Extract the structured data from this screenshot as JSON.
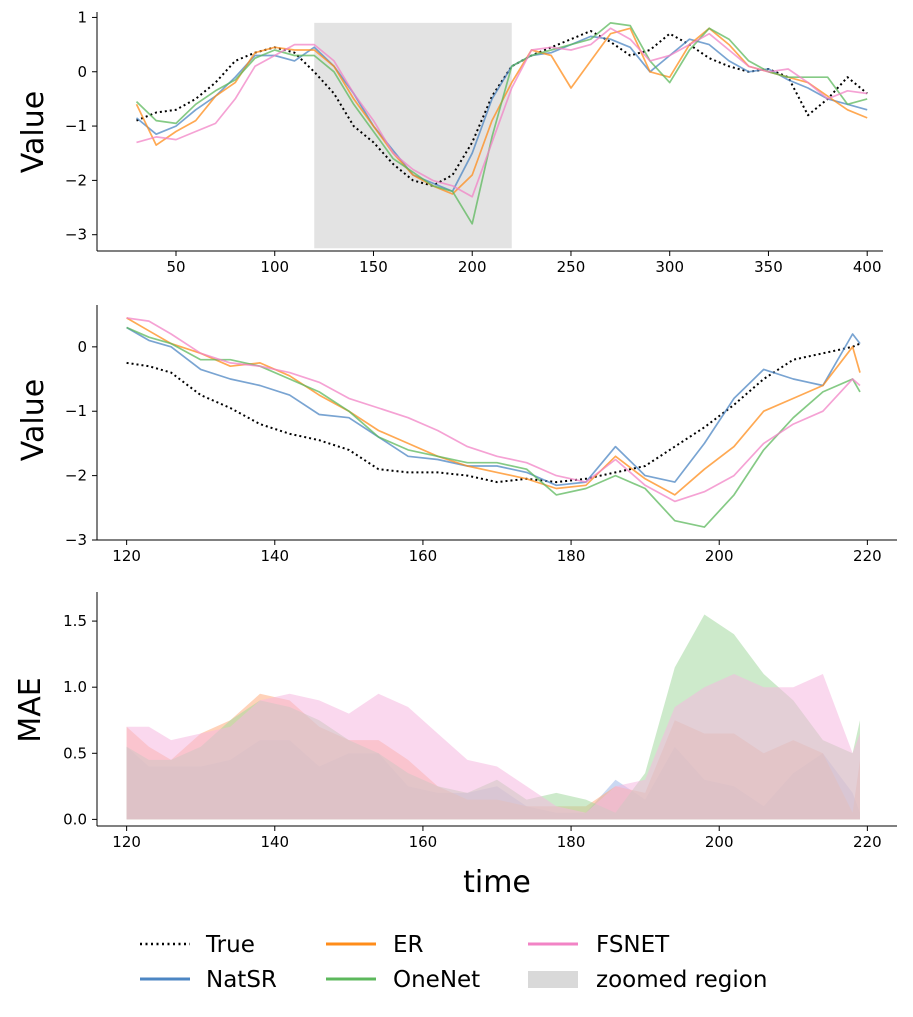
{
  "chart_data": [
    {
      "type": "line",
      "panel": "overview",
      "title": "",
      "xlabel": "",
      "ylabel": "Value",
      "xlim": [
        10,
        408
      ],
      "ylim": [
        -3.3,
        1.1
      ],
      "xticks": [
        50,
        100,
        150,
        200,
        250,
        300,
        350,
        400
      ],
      "yticks": [
        -3,
        -2,
        -1,
        0,
        1
      ],
      "zoomed_region": {
        "x0": 120,
        "x1": 220,
        "y0": -3.25,
        "y1": 0.9
      },
      "series": [
        {
          "name": "True",
          "x": [
            30,
            40,
            50,
            60,
            70,
            80,
            90,
            100,
            110,
            120,
            130,
            140,
            150,
            160,
            170,
            180,
            190,
            200,
            210,
            220,
            230,
            240,
            250,
            260,
            270,
            280,
            290,
            300,
            310,
            320,
            330,
            340,
            350,
            360,
            370,
            380,
            390,
            400
          ],
          "values": [
            -0.9,
            -0.75,
            -0.7,
            -0.5,
            -0.2,
            0.2,
            0.35,
            0.45,
            0.35,
            0.0,
            -0.4,
            -1.0,
            -1.3,
            -1.7,
            -2.0,
            -2.1,
            -1.9,
            -1.3,
            -0.45,
            0.1,
            0.3,
            0.45,
            0.6,
            0.75,
            0.55,
            0.3,
            0.4,
            0.7,
            0.5,
            0.25,
            0.1,
            0.0,
            0.05,
            -0.1,
            -0.8,
            -0.5,
            -0.1,
            -0.4
          ]
        },
        {
          "name": "NatSR",
          "x": [
            30,
            40,
            50,
            60,
            70,
            80,
            90,
            100,
            110,
            120,
            130,
            140,
            150,
            160,
            170,
            180,
            190,
            200,
            210,
            220,
            230,
            240,
            250,
            260,
            270,
            280,
            290,
            300,
            310,
            320,
            330,
            340,
            350,
            360,
            370,
            380,
            390,
            400
          ],
          "values": [
            -0.85,
            -1.15,
            -1.0,
            -0.7,
            -0.45,
            -0.1,
            0.3,
            0.3,
            0.2,
            0.45,
            0.1,
            -0.4,
            -1.0,
            -1.45,
            -1.9,
            -2.05,
            -2.2,
            -1.5,
            -0.5,
            0.1,
            0.3,
            0.35,
            0.5,
            0.65,
            0.6,
            0.45,
            0.0,
            0.3,
            0.6,
            0.5,
            0.2,
            0.0,
            0.05,
            -0.15,
            -0.3,
            -0.5,
            -0.6,
            -0.7
          ]
        },
        {
          "name": "ER",
          "x": [
            30,
            40,
            50,
            60,
            70,
            80,
            90,
            100,
            110,
            120,
            130,
            140,
            150,
            160,
            170,
            180,
            190,
            200,
            210,
            220,
            230,
            240,
            250,
            260,
            270,
            280,
            290,
            300,
            310,
            320,
            330,
            340,
            350,
            360,
            370,
            380,
            390,
            400
          ],
          "values": [
            -0.6,
            -1.35,
            -1.1,
            -0.9,
            -0.45,
            -0.2,
            0.35,
            0.45,
            0.4,
            0.4,
            0.1,
            -0.5,
            -1.0,
            -1.5,
            -1.9,
            -2.1,
            -2.25,
            -1.9,
            -0.9,
            -0.2,
            0.4,
            0.3,
            -0.3,
            0.2,
            0.7,
            0.8,
            0.0,
            -0.1,
            0.5,
            0.8,
            0.5,
            0.1,
            0.0,
            -0.1,
            -0.2,
            -0.45,
            -0.7,
            -0.85
          ]
        },
        {
          "name": "OneNet",
          "x": [
            30,
            40,
            50,
            60,
            70,
            80,
            90,
            100,
            110,
            120,
            130,
            140,
            150,
            160,
            170,
            180,
            190,
            200,
            210,
            220,
            230,
            240,
            250,
            260,
            270,
            280,
            290,
            300,
            310,
            320,
            330,
            340,
            350,
            360,
            370,
            380,
            390,
            400
          ],
          "values": [
            -0.55,
            -0.9,
            -0.95,
            -0.6,
            -0.35,
            -0.15,
            0.25,
            0.4,
            0.3,
            0.3,
            0.0,
            -0.6,
            -1.1,
            -1.6,
            -1.85,
            -2.1,
            -2.2,
            -2.8,
            -1.2,
            0.1,
            0.3,
            0.4,
            0.5,
            0.6,
            0.9,
            0.85,
            0.2,
            -0.2,
            0.4,
            0.8,
            0.6,
            0.2,
            0.0,
            -0.1,
            -0.1,
            -0.1,
            -0.6,
            -0.5
          ]
        },
        {
          "name": "FSNET",
          "x": [
            30,
            40,
            50,
            60,
            70,
            80,
            90,
            100,
            110,
            120,
            130,
            140,
            150,
            160,
            170,
            180,
            190,
            200,
            210,
            220,
            230,
            240,
            250,
            260,
            270,
            280,
            290,
            300,
            310,
            320,
            330,
            340,
            350,
            360,
            370,
            380,
            390,
            400
          ],
          "values": [
            -1.3,
            -1.2,
            -1.25,
            -1.1,
            -0.95,
            -0.5,
            0.1,
            0.3,
            0.5,
            0.5,
            0.2,
            -0.4,
            -0.9,
            -1.5,
            -1.8,
            -2.0,
            -2.1,
            -2.3,
            -1.3,
            -0.3,
            0.4,
            0.45,
            0.4,
            0.5,
            0.8,
            0.6,
            0.2,
            0.3,
            0.5,
            0.7,
            0.4,
            0.1,
            0.0,
            0.05,
            -0.2,
            -0.5,
            -0.35,
            -0.4
          ]
        }
      ]
    },
    {
      "type": "line",
      "panel": "zoom",
      "title": "",
      "xlabel": "",
      "ylabel": "Value",
      "xlim": [
        116,
        224
      ],
      "ylim": [
        -3.0,
        0.65
      ],
      "xticks": [
        120,
        140,
        160,
        180,
        200,
        220
      ],
      "yticks": [
        -3,
        -2,
        -1,
        0
      ],
      "series": [
        {
          "name": "True",
          "x": [
            120,
            123,
            126,
            130,
            134,
            138,
            142,
            146,
            150,
            154,
            158,
            162,
            166,
            170,
            174,
            178,
            182,
            186,
            190,
            194,
            198,
            202,
            206,
            210,
            214,
            218,
            219
          ],
          "values": [
            -0.25,
            -0.3,
            -0.4,
            -0.75,
            -0.95,
            -1.2,
            -1.35,
            -1.45,
            -1.6,
            -1.9,
            -1.95,
            -1.95,
            -2.0,
            -2.1,
            -2.05,
            -2.1,
            -2.05,
            -1.95,
            -1.85,
            -1.55,
            -1.25,
            -0.9,
            -0.5,
            -0.2,
            -0.1,
            0.0,
            0.05
          ]
        },
        {
          "name": "NatSR",
          "x": [
            120,
            123,
            126,
            130,
            134,
            138,
            142,
            146,
            150,
            154,
            158,
            162,
            166,
            170,
            174,
            178,
            182,
            186,
            190,
            194,
            198,
            202,
            206,
            210,
            214,
            218,
            219
          ],
          "values": [
            0.3,
            0.1,
            0.0,
            -0.35,
            -0.5,
            -0.6,
            -0.75,
            -1.05,
            -1.1,
            -1.4,
            -1.7,
            -1.75,
            -1.85,
            -1.85,
            -1.95,
            -2.15,
            -2.1,
            -1.55,
            -2.0,
            -2.1,
            -1.5,
            -0.8,
            -0.35,
            -0.5,
            -0.6,
            0.2,
            0.05
          ]
        },
        {
          "name": "ER",
          "x": [
            120,
            123,
            126,
            130,
            134,
            138,
            142,
            146,
            150,
            154,
            158,
            162,
            166,
            170,
            174,
            178,
            182,
            186,
            190,
            194,
            198,
            202,
            206,
            210,
            214,
            218,
            219
          ],
          "values": [
            0.45,
            0.25,
            0.05,
            -0.1,
            -0.3,
            -0.25,
            -0.45,
            -0.75,
            -1.0,
            -1.3,
            -1.5,
            -1.7,
            -1.85,
            -1.95,
            -2.05,
            -2.2,
            -2.15,
            -1.7,
            -2.05,
            -2.3,
            -1.9,
            -1.55,
            -1.0,
            -0.8,
            -0.6,
            0.0,
            -0.4
          ]
        },
        {
          "name": "OneNet",
          "x": [
            120,
            123,
            126,
            130,
            134,
            138,
            142,
            146,
            150,
            154,
            158,
            162,
            166,
            170,
            174,
            178,
            182,
            186,
            190,
            194,
            198,
            202,
            206,
            210,
            214,
            218,
            219
          ],
          "values": [
            0.3,
            0.15,
            0.05,
            -0.2,
            -0.2,
            -0.3,
            -0.5,
            -0.7,
            -1.0,
            -1.4,
            -1.6,
            -1.7,
            -1.8,
            -1.8,
            -1.9,
            -2.3,
            -2.2,
            -2.0,
            -2.2,
            -2.7,
            -2.8,
            -2.3,
            -1.6,
            -1.1,
            -0.7,
            -0.5,
            -0.7
          ]
        },
        {
          "name": "FSNET",
          "x": [
            120,
            123,
            126,
            130,
            134,
            138,
            142,
            146,
            150,
            154,
            158,
            162,
            166,
            170,
            174,
            178,
            182,
            186,
            190,
            194,
            198,
            202,
            206,
            210,
            214,
            218,
            219
          ],
          "values": [
            0.45,
            0.4,
            0.2,
            -0.1,
            -0.25,
            -0.3,
            -0.4,
            -0.55,
            -0.8,
            -0.95,
            -1.1,
            -1.3,
            -1.55,
            -1.7,
            -1.8,
            -2.0,
            -2.1,
            -1.75,
            -2.15,
            -2.4,
            -2.25,
            -2.0,
            -1.5,
            -1.2,
            -1.0,
            -0.5,
            -0.6
          ]
        }
      ]
    },
    {
      "type": "area",
      "panel": "mae",
      "title": "",
      "xlabel": "time",
      "ylabel": "MAE",
      "xlim": [
        116,
        224
      ],
      "ylim": [
        -0.05,
        1.72
      ],
      "xticks": [
        120,
        140,
        160,
        180,
        200,
        220
      ],
      "yticks": [
        0.0,
        0.5,
        1.0,
        1.5
      ],
      "series": [
        {
          "name": "NatSR",
          "x": [
            120,
            123,
            126,
            130,
            134,
            138,
            142,
            146,
            150,
            154,
            158,
            162,
            166,
            170,
            174,
            178,
            182,
            186,
            190,
            194,
            198,
            202,
            206,
            210,
            214,
            218,
            219
          ],
          "values": [
            0.55,
            0.4,
            0.4,
            0.4,
            0.45,
            0.6,
            0.6,
            0.4,
            0.5,
            0.5,
            0.25,
            0.2,
            0.2,
            0.25,
            0.1,
            0.05,
            0.05,
            0.3,
            0.15,
            0.55,
            0.3,
            0.25,
            0.1,
            0.35,
            0.5,
            0.2,
            0.05
          ]
        },
        {
          "name": "ER",
          "x": [
            120,
            123,
            126,
            130,
            134,
            138,
            142,
            146,
            150,
            154,
            158,
            162,
            166,
            170,
            174,
            178,
            182,
            186,
            190,
            194,
            198,
            202,
            206,
            210,
            214,
            218,
            219
          ],
          "values": [
            0.7,
            0.55,
            0.45,
            0.65,
            0.75,
            0.95,
            0.9,
            0.7,
            0.6,
            0.6,
            0.45,
            0.25,
            0.15,
            0.15,
            0.1,
            0.1,
            0.1,
            0.25,
            0.2,
            0.75,
            0.65,
            0.65,
            0.5,
            0.6,
            0.5,
            0.05,
            0.45
          ]
        },
        {
          "name": "OneNet",
          "x": [
            120,
            123,
            126,
            130,
            134,
            138,
            142,
            146,
            150,
            154,
            158,
            162,
            166,
            170,
            174,
            178,
            182,
            186,
            190,
            194,
            198,
            202,
            206,
            210,
            214,
            218,
            219
          ],
          "values": [
            0.55,
            0.45,
            0.45,
            0.55,
            0.75,
            0.9,
            0.85,
            0.75,
            0.6,
            0.5,
            0.35,
            0.25,
            0.2,
            0.3,
            0.15,
            0.2,
            0.15,
            0.05,
            0.35,
            1.15,
            1.55,
            1.4,
            1.1,
            0.9,
            0.6,
            0.5,
            0.75
          ]
        },
        {
          "name": "FSNET",
          "x": [
            120,
            123,
            126,
            130,
            134,
            138,
            142,
            146,
            150,
            154,
            158,
            162,
            166,
            170,
            174,
            178,
            182,
            186,
            190,
            194,
            198,
            202,
            206,
            210,
            214,
            218,
            219
          ],
          "values": [
            0.7,
            0.7,
            0.6,
            0.65,
            0.7,
            0.9,
            0.95,
            0.9,
            0.8,
            0.95,
            0.85,
            0.65,
            0.45,
            0.4,
            0.25,
            0.1,
            0.05,
            0.25,
            0.3,
            0.85,
            1.0,
            1.1,
            1.0,
            1.0,
            1.1,
            0.5,
            0.65
          ]
        }
      ]
    }
  ],
  "legend": {
    "entries": [
      {
        "label": "True",
        "style": "dotted",
        "color": "#000000"
      },
      {
        "label": "NatSR",
        "style": "line",
        "color": "#4c86c3"
      },
      {
        "label": "ER",
        "style": "line",
        "color": "#ff8c1a"
      },
      {
        "label": "OneNet",
        "style": "line",
        "color": "#5cb85c"
      },
      {
        "label": "FSNET",
        "style": "line",
        "color": "#f283c5"
      },
      {
        "label": "zoomed region",
        "style": "patch",
        "color": "#d9d9d9"
      }
    ]
  },
  "colors": {
    "True": "#000000",
    "NatSR": "#4c86c3",
    "ER": "#ff8c1a",
    "OneNet": "#5cb85c",
    "FSNET": "#f283c5",
    "zoom": "#e3e3e3",
    "mae_NatSR": "#9fb8e8",
    "mae_ER": "#ffad80",
    "mae_OneNet": "#a4d8a0",
    "mae_FSNET": "#f6b8e0"
  }
}
